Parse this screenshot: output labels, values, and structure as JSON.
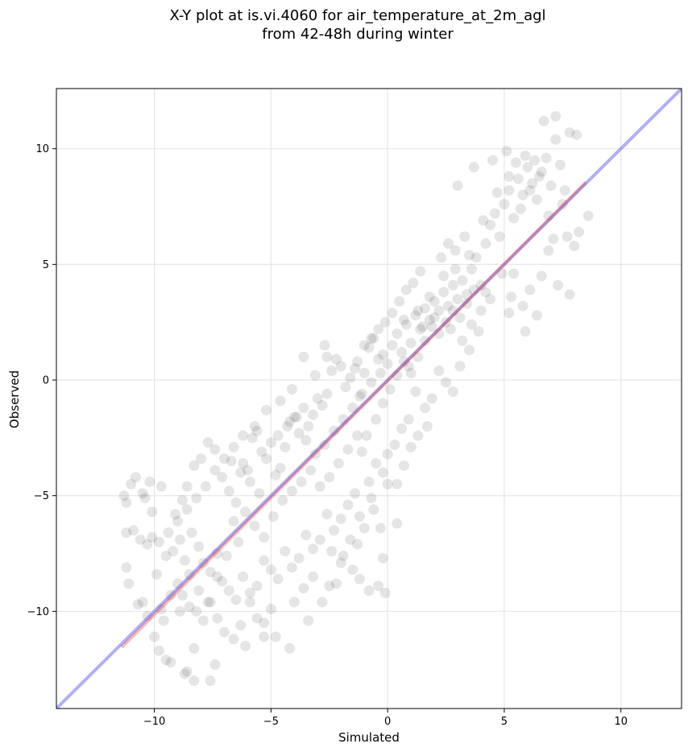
{
  "chart_data": {
    "type": "scatter",
    "title": [
      "X-Y plot at is.vi.4060 for air_temperature_at_2m_agl",
      "from 42-48h during winter"
    ],
    "xlabel": "Simulated",
    "ylabel": "Observed",
    "xlim": [
      -14.2,
      12.6
    ],
    "ylim": [
      -14.2,
      12.6
    ],
    "xticks": [
      -10,
      -5,
      0,
      5,
      10
    ],
    "yticks": [
      -10,
      -5,
      0,
      5,
      10
    ],
    "xtick_labels": [
      "−10",
      "−5",
      "0",
      "5",
      "10"
    ],
    "ytick_labels": [
      "−10",
      "−5",
      "0",
      "5",
      "10"
    ],
    "grid": true,
    "point_color": "#000000",
    "point_alpha": 0.1,
    "points": [
      [
        -11.3,
        -5.0
      ],
      [
        -11.2,
        -5.3
      ],
      [
        -11.0,
        -4.5
      ],
      [
        -10.8,
        -4.2
      ],
      [
        -10.5,
        -4.9
      ],
      [
        -10.4,
        -5.1
      ],
      [
        -10.2,
        -4.4
      ],
      [
        -10.1,
        -5.7
      ],
      [
        -9.7,
        -4.6
      ],
      [
        -11.2,
        -6.6
      ],
      [
        -10.9,
        -6.5
      ],
      [
        -10.6,
        -6.9
      ],
      [
        -10.3,
        -7.1
      ],
      [
        -10.1,
        -6.8
      ],
      [
        -11.2,
        -8.1
      ],
      [
        -11.1,
        -8.8
      ],
      [
        -10.5,
        -9.6
      ],
      [
        -10.3,
        -10.2
      ],
      [
        -10.0,
        -11.1
      ],
      [
        -9.8,
        -11.7
      ],
      [
        -9.5,
        -12.1
      ],
      [
        -9.3,
        -12.2
      ],
      [
        -8.7,
        -12.7
      ],
      [
        -8.6,
        -12.6
      ],
      [
        -8.3,
        -13.0
      ],
      [
        -7.6,
        -13.0
      ],
      [
        -9.5,
        -7.6
      ],
      [
        -9.2,
        -7.4
      ],
      [
        -8.9,
        -6.9
      ],
      [
        -8.7,
        -7.8
      ],
      [
        -8.4,
        -6.6
      ],
      [
        -8.1,
        -7.2
      ],
      [
        -7.9,
        -7.9
      ],
      [
        -7.6,
        -8.3
      ],
      [
        -7.3,
        -7.5
      ],
      [
        -9.0,
        -8.8
      ],
      [
        -8.8,
        -9.3
      ],
      [
        -8.5,
        -9.8
      ],
      [
        -8.2,
        -10.0
      ],
      [
        -7.9,
        -10.4
      ],
      [
        -7.6,
        -9.6
      ],
      [
        -7.3,
        -10.3
      ],
      [
        -7.0,
        -10.9
      ],
      [
        -6.6,
        -11.2
      ],
      [
        -6.3,
        -10.6
      ],
      [
        -5.9,
        -9.6
      ],
      [
        -5.6,
        -10.3
      ],
      [
        -5.3,
        -10.5
      ],
      [
        -5.0,
        -9.9
      ],
      [
        -4.8,
        -11.1
      ],
      [
        -4.2,
        -11.6
      ],
      [
        -3.4,
        -10.4
      ],
      [
        -9.1,
        -5.8
      ],
      [
        -8.8,
        -5.2
      ],
      [
        -8.6,
        -4.6
      ],
      [
        -8.3,
        -3.7
      ],
      [
        -8.0,
        -3.4
      ],
      [
        -7.7,
        -2.7
      ],
      [
        -7.4,
        -3.0
      ],
      [
        -7.1,
        -4.2
      ],
      [
        -6.8,
        -4.8
      ],
      [
        -6.5,
        -5.3
      ],
      [
        -6.2,
        -3.6
      ],
      [
        -6.0,
        -3.9
      ],
      [
        -5.8,
        -2.5
      ],
      [
        -5.6,
        -2.2
      ],
      [
        -5.4,
        -3.1
      ],
      [
        -5.2,
        -3.4
      ],
      [
        -5.0,
        -2.7
      ],
      [
        -4.8,
        -4.1
      ],
      [
        -4.6,
        -3.8
      ],
      [
        -4.4,
        -2.9
      ],
      [
        -4.2,
        -1.8
      ],
      [
        -4.0,
        -1.6
      ],
      [
        -3.8,
        -2.3
      ],
      [
        -3.6,
        -1.2
      ],
      [
        -3.4,
        -2.0
      ],
      [
        -3.2,
        -1.5
      ],
      [
        -3.0,
        -0.8
      ],
      [
        -2.8,
        -1.1
      ],
      [
        -2.6,
        -0.6
      ],
      [
        -2.4,
        0.4
      ],
      [
        -2.2,
        0.9
      ],
      [
        -2.0,
        0.6
      ],
      [
        -1.8,
        -0.3
      ],
      [
        -1.6,
        0.1
      ],
      [
        -1.4,
        0.5
      ],
      [
        -1.2,
        -0.7
      ],
      [
        -1.0,
        0.3
      ],
      [
        -0.8,
        1.4
      ],
      [
        -0.6,
        1.8
      ],
      [
        -0.4,
        0.9
      ],
      [
        -0.2,
        1.1
      ],
      [
        0.0,
        0.7
      ],
      [
        0.2,
        1.5
      ],
      [
        0.4,
        2.0
      ],
      [
        0.6,
        1.2
      ],
      [
        0.8,
        2.4
      ],
      [
        1.0,
        1.6
      ],
      [
        1.2,
        2.8
      ],
      [
        1.4,
        2.2
      ],
      [
        1.6,
        3.1
      ],
      [
        1.8,
        2.6
      ],
      [
        2.0,
        3.4
      ],
      [
        2.2,
        3.0
      ],
      [
        2.4,
        3.8
      ],
      [
        2.6,
        3.2
      ],
      [
        2.8,
        4.1
      ],
      [
        3.0,
        3.5
      ],
      [
        3.2,
        4.3
      ],
      [
        3.4,
        3.7
      ],
      [
        3.6,
        4.8
      ],
      [
        3.8,
        5.3
      ],
      [
        4.0,
        4.1
      ],
      [
        4.2,
        5.9
      ],
      [
        4.4,
        6.7
      ],
      [
        4.6,
        7.2
      ],
      [
        4.8,
        6.2
      ],
      [
        5.0,
        7.6
      ],
      [
        5.2,
        8.2
      ],
      [
        5.4,
        7.0
      ],
      [
        5.6,
        8.7
      ],
      [
        5.8,
        8.0
      ],
      [
        6.0,
        9.2
      ],
      [
        6.2,
        8.5
      ],
      [
        6.4,
        7.8
      ],
      [
        6.6,
        9.0
      ],
      [
        6.8,
        9.6
      ],
      [
        7.0,
        8.4
      ],
      [
        7.2,
        10.4
      ],
      [
        7.4,
        9.3
      ],
      [
        7.6,
        8.2
      ],
      [
        7.8,
        10.7
      ],
      [
        8.1,
        10.6
      ],
      [
        6.7,
        11.2
      ],
      [
        7.2,
        11.4
      ],
      [
        3.0,
        8.4
      ],
      [
        3.7,
        9.2
      ],
      [
        4.5,
        9.5
      ],
      [
        5.1,
        9.9
      ],
      [
        5.5,
        9.4
      ],
      [
        5.9,
        9.7
      ],
      [
        6.3,
        9.5
      ],
      [
        6.1,
        8.2
      ],
      [
        5.3,
        3.6
      ],
      [
        5.4,
        4.6
      ],
      [
        5.8,
        3.2
      ],
      [
        6.1,
        3.9
      ],
      [
        6.4,
        2.8
      ],
      [
        6.6,
        4.5
      ],
      [
        5.9,
        2.1
      ],
      [
        5.2,
        2.9
      ],
      [
        6.9,
        5.6
      ],
      [
        7.1,
        6.1
      ],
      [
        7.3,
        4.1
      ],
      [
        7.8,
        3.7
      ],
      [
        8.0,
        5.8
      ],
      [
        8.2,
        6.4
      ],
      [
        7.7,
        6.2
      ],
      [
        8.6,
        7.1
      ],
      [
        4.9,
        4.6
      ],
      [
        4.2,
        3.8
      ],
      [
        3.9,
        2.1
      ],
      [
        3.5,
        1.3
      ],
      [
        3.1,
        0.6
      ],
      [
        2.8,
        -0.5
      ],
      [
        2.5,
        -0.1
      ],
      [
        2.2,
        0.4
      ],
      [
        1.9,
        -0.8
      ],
      [
        1.6,
        -1.2
      ],
      [
        1.2,
        -0.5
      ],
      [
        0.9,
        -1.7
      ],
      [
        0.6,
        -2.1
      ],
      [
        0.3,
        -2.8
      ],
      [
        0.0,
        -3.2
      ],
      [
        -0.2,
        -4.0
      ],
      [
        -0.5,
        -3.6
      ],
      [
        -0.8,
        -4.4
      ],
      [
        -1.1,
        -3.1
      ],
      [
        -1.4,
        -4.9
      ],
      [
        -1.7,
        -5.4
      ],
      [
        -2.0,
        -6.0
      ],
      [
        -2.3,
        -6.5
      ],
      [
        -2.6,
        -5.8
      ],
      [
        -2.9,
        -6.9
      ],
      [
        -3.2,
        -7.3
      ],
      [
        -3.5,
        -6.7
      ],
      [
        -3.8,
        -7.7
      ],
      [
        -4.1,
        -8.1
      ],
      [
        -4.4,
        -7.4
      ],
      [
        -4.7,
        -8.6
      ],
      [
        -5.0,
        -8.2
      ],
      [
        -5.3,
        -7.8
      ],
      [
        -5.6,
        -8.9
      ],
      [
        -5.9,
        -9.2
      ],
      [
        -6.2,
        -8.5
      ],
      [
        -6.5,
        -9.5
      ],
      [
        -6.8,
        -9.1
      ],
      [
        -7.1,
        -8.7
      ],
      [
        -0.1,
        -9.2
      ],
      [
        -0.4,
        -8.9
      ],
      [
        -0.8,
        -9.1
      ],
      [
        -1.2,
        -8.6
      ],
      [
        -1.5,
        -8.2
      ],
      [
        -1.9,
        -7.6
      ],
      [
        -2.2,
        -8.8
      ],
      [
        -2.5,
        -8.9
      ],
      [
        -0.2,
        -7.7
      ],
      [
        -0.3,
        -6.4
      ],
      [
        0.4,
        -6.2
      ],
      [
        -0.6,
        -5.6
      ],
      [
        -1.0,
        -6.4
      ],
      [
        -1.3,
        -7.1
      ],
      [
        -0.9,
        -2.4
      ],
      [
        -0.5,
        -1.7
      ],
      [
        -0.2,
        -1.0
      ],
      [
        0.1,
        -0.4
      ],
      [
        0.4,
        0.2
      ],
      [
        0.7,
        0.8
      ],
      [
        1.0,
        0.3
      ],
      [
        1.3,
        1.0
      ],
      [
        1.6,
        1.7
      ],
      [
        1.9,
        2.3
      ],
      [
        2.2,
        2.0
      ],
      [
        2.5,
        2.5
      ],
      [
        2.8,
        3.0
      ],
      [
        3.1,
        2.7
      ],
      [
        3.4,
        3.3
      ],
      [
        3.7,
        3.9
      ],
      [
        2.3,
        5.3
      ],
      [
        2.6,
        5.9
      ],
      [
        2.9,
        5.6
      ],
      [
        3.3,
        6.2
      ],
      [
        3.5,
        5.4
      ],
      [
        1.4,
        4.7
      ],
      [
        1.1,
        4.2
      ],
      [
        0.8,
        3.9
      ],
      [
        0.5,
        3.4
      ],
      [
        0.2,
        2.9
      ],
      [
        -0.1,
        2.5
      ],
      [
        -0.4,
        2.2
      ],
      [
        -0.7,
        1.8
      ],
      [
        -1.0,
        1.5
      ],
      [
        -1.3,
        0.8
      ],
      [
        -2.7,
        1.5
      ],
      [
        -2.6,
        1.0
      ],
      [
        -3.1,
        0.2
      ],
      [
        -3.6,
        1.0
      ],
      [
        -4.1,
        -0.4
      ],
      [
        -4.6,
        -0.9
      ],
      [
        -5.2,
        -1.3
      ],
      [
        -5.7,
        -2.0
      ],
      [
        -6.2,
        -2.4
      ],
      [
        -6.6,
        -2.9
      ],
      [
        -7.0,
        -3.4
      ],
      [
        -7.4,
        -3.9
      ],
      [
        -7.8,
        -4.6
      ],
      [
        -8.2,
        -5.1
      ],
      [
        -8.6,
        -5.6
      ],
      [
        -9.0,
        -6.1
      ],
      [
        -9.4,
        -6.6
      ],
      [
        -9.8,
        -7.0
      ],
      [
        -6.6,
        -6.1
      ],
      [
        -6.1,
        -5.7
      ],
      [
        -5.7,
        -6.3
      ],
      [
        -5.3,
        -6.8
      ],
      [
        -4.9,
        -5.9
      ],
      [
        -4.5,
        -5.2
      ],
      [
        -4.1,
        -4.8
      ],
      [
        -3.7,
        -4.4
      ],
      [
        -3.3,
        -3.9
      ],
      [
        -2.9,
        -4.6
      ],
      [
        -2.5,
        -4.2
      ],
      [
        -2.1,
        -3.6
      ],
      [
        -1.7,
        -3.0
      ],
      [
        -1.3,
        -2.4
      ],
      [
        -5.5,
        -4.9
      ],
      [
        -5.9,
        -4.4
      ],
      [
        -6.3,
        -4.0
      ],
      [
        -6.7,
        -3.5
      ],
      [
        -4.7,
        -2.4
      ],
      [
        -4.3,
        -2.0
      ],
      [
        -3.9,
        -1.6
      ],
      [
        -3.5,
        -2.6
      ],
      [
        -3.1,
        -3.2
      ],
      [
        -2.7,
        -2.8
      ],
      [
        -2.3,
        -2.2
      ],
      [
        -1.9,
        -1.7
      ],
      [
        -1.5,
        -1.2
      ],
      [
        -1.1,
        -0.6
      ],
      [
        -0.7,
        -0.1
      ],
      [
        -0.3,
        0.3
      ],
      [
        0.9,
        0.6
      ],
      [
        1.5,
        2.3
      ],
      [
        2.0,
        2.7
      ],
      [
        2.7,
        2.2
      ],
      [
        3.2,
        1.7
      ],
      [
        3.6,
        2.4
      ],
      [
        4.0,
        3.0
      ],
      [
        4.4,
        3.5
      ],
      [
        1.8,
        3.6
      ],
      [
        1.3,
        3.0
      ],
      [
        0.7,
        2.6
      ],
      [
        2.4,
        4.5
      ],
      [
        2.9,
        4.8
      ],
      [
        4.1,
        6.9
      ],
      [
        4.7,
        8.1
      ],
      [
        5.2,
        8.8
      ],
      [
        5.7,
        7.4
      ],
      [
        6.5,
        8.8
      ],
      [
        6.9,
        7.1
      ],
      [
        7.5,
        7.6
      ],
      [
        -9.7,
        -9.9
      ],
      [
        -9.3,
        -9.3
      ],
      [
        -8.9,
        -10.0
      ],
      [
        -8.5,
        -8.4
      ],
      [
        -8.1,
        -9.1
      ],
      [
        -7.7,
        -9.6
      ],
      [
        -7.3,
        -8.5
      ],
      [
        -6.9,
        -7.6
      ],
      [
        -6.4,
        -7.0
      ],
      [
        -4.0,
        -9.6
      ],
      [
        -3.6,
        -9.0
      ],
      [
        -3.2,
        -8.5
      ],
      [
        -2.8,
        -9.6
      ],
      [
        -2.4,
        -7.4
      ],
      [
        -2.0,
        -7.9
      ],
      [
        -1.6,
        -6.9
      ],
      [
        -1.2,
        -5.9
      ],
      [
        -0.7,
        -5.1
      ],
      [
        0.0,
        -4.5
      ],
      [
        0.4,
        -4.5
      ],
      [
        0.7,
        -3.7
      ],
      [
        1.0,
        -2.9
      ],
      [
        1.3,
        -2.4
      ],
      [
        1.7,
        -2.0
      ],
      [
        -10.7,
        -9.7
      ],
      [
        -9.9,
        -8.4
      ],
      [
        -9.6,
        -10.4
      ],
      [
        -8.3,
        -11.6
      ],
      [
        -7.4,
        -12.3
      ],
      [
        -6.1,
        -11.5
      ],
      [
        -5.3,
        -11.1
      ]
    ]
  }
}
